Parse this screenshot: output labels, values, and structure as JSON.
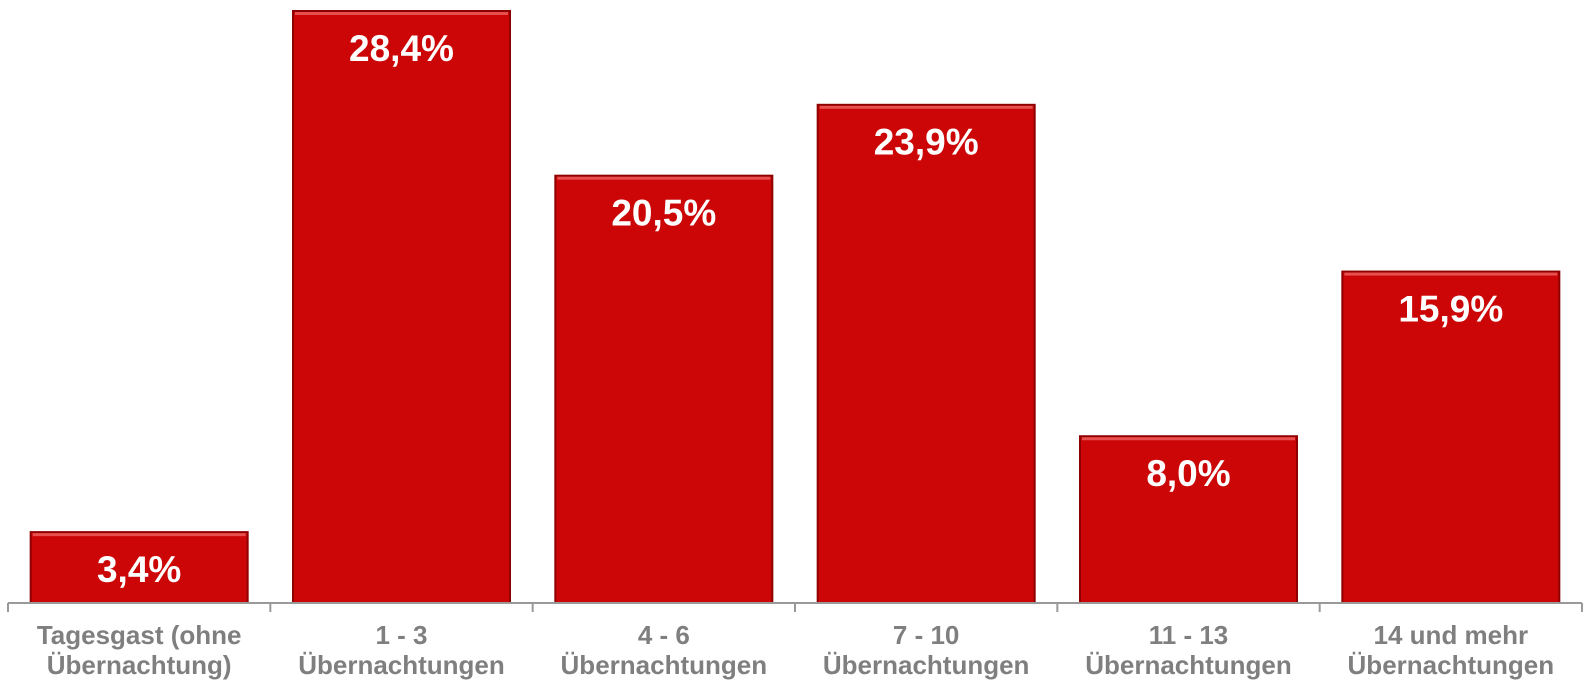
{
  "chart_data": {
    "type": "bar",
    "categories": [
      "Tagesgast (ohne Übernachtung)",
      "1 - 3 Übernachtungen",
      "4 - 6 Übernachtungen",
      "7 - 10 Übernachtungen",
      "11 - 13 Übernachtungen",
      "14 und mehr Übernachtungen"
    ],
    "values": [
      3.4,
      28.4,
      20.5,
      23.9,
      8.0,
      15.9
    ],
    "value_labels": [
      "3,4%",
      "28,4%",
      "20,5%",
      "23,9%",
      "8,0%",
      "15,9%"
    ],
    "color": "#cc0606"
  }
}
